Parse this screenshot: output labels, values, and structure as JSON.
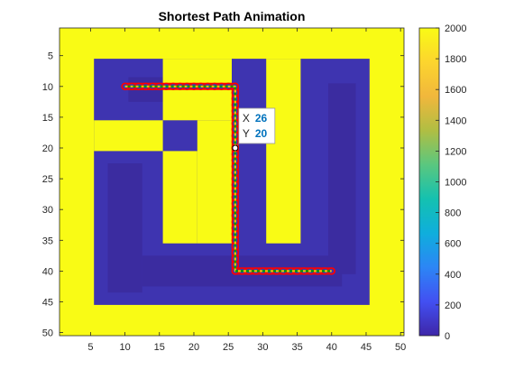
{
  "chart_data": {
    "type": "heatmap",
    "title": "Shortest Path Animation",
    "xlabel": "",
    "ylabel": "",
    "grid": "off",
    "xlim": [
      0.5,
      50.5
    ],
    "ylim": [
      0.5,
      50.5
    ],
    "y_direction": "reverse",
    "xticks": [
      5,
      10,
      15,
      20,
      25,
      30,
      35,
      40,
      45,
      50
    ],
    "yticks": [
      5,
      10,
      15,
      20,
      25,
      30,
      35,
      40,
      45,
      50
    ],
    "colorbar": {
      "limits": [
        0,
        2000
      ],
      "ticks": [
        0,
        200,
        400,
        600,
        800,
        1000,
        1200,
        1400,
        1600,
        1800,
        2000
      ],
      "colormap": [
        "#3E26A8",
        "#4250F2",
        "#2C86F5",
        "#0FAEDC",
        "#14C1B0",
        "#5AC77F",
        "#B0BE43",
        "#F1B73C",
        "#FCD52E",
        "#F9FB15"
      ]
    },
    "colors": {
      "wall": "#F9FB15",
      "open_dark": "#3B2CA0",
      "open_mid": "#3E34B0",
      "open_light": "#4138BE",
      "path_marker_edge": "#FF0000",
      "path_line_green": "#00A000",
      "path_line_yellow": "#E8C500"
    },
    "wall_value": 2000,
    "open_regions": [
      {
        "x": [
          5.5,
          45.5
        ],
        "y": [
          5.5,
          45.5
        ],
        "value": 200
      }
    ],
    "wall_regions": [
      {
        "x": [
          15.5,
          25.5
        ],
        "y": [
          5.5,
          15.5
        ]
      },
      {
        "x": [
          5.5,
          15.5
        ],
        "y": [
          15.5,
          20.5
        ]
      },
      {
        "x": [
          20.5,
          25.5
        ],
        "y": [
          15.5,
          35.5
        ]
      },
      {
        "x": [
          30.5,
          35.5
        ],
        "y": [
          5.5,
          35.5
        ]
      },
      {
        "x": [
          15.5,
          20.5
        ],
        "y": [
          20.5,
          35.5
        ]
      }
    ],
    "inner_shading_regions": [
      {
        "x": [
          10.5,
          24.5
        ],
        "y": [
          8.5,
          12.5
        ],
        "value": 160
      },
      {
        "x": [
          7.5,
          12.5
        ],
        "y": [
          22.5,
          43.5
        ],
        "value": 130
      },
      {
        "x": [
          12.5,
          41.5
        ],
        "y": [
          37.5,
          42.5
        ],
        "value": 120
      },
      {
        "x": [
          39.5,
          43.5
        ],
        "y": [
          9.5,
          40.5
        ],
        "value": 140
      }
    ],
    "path": {
      "x": [
        10,
        26,
        26,
        40
      ],
      "y": [
        10,
        10,
        40,
        40
      ]
    },
    "datatip": {
      "point": [
        26,
        20
      ],
      "x_label": "X",
      "x_value": "26",
      "y_label": "Y",
      "y_value": "20"
    }
  }
}
